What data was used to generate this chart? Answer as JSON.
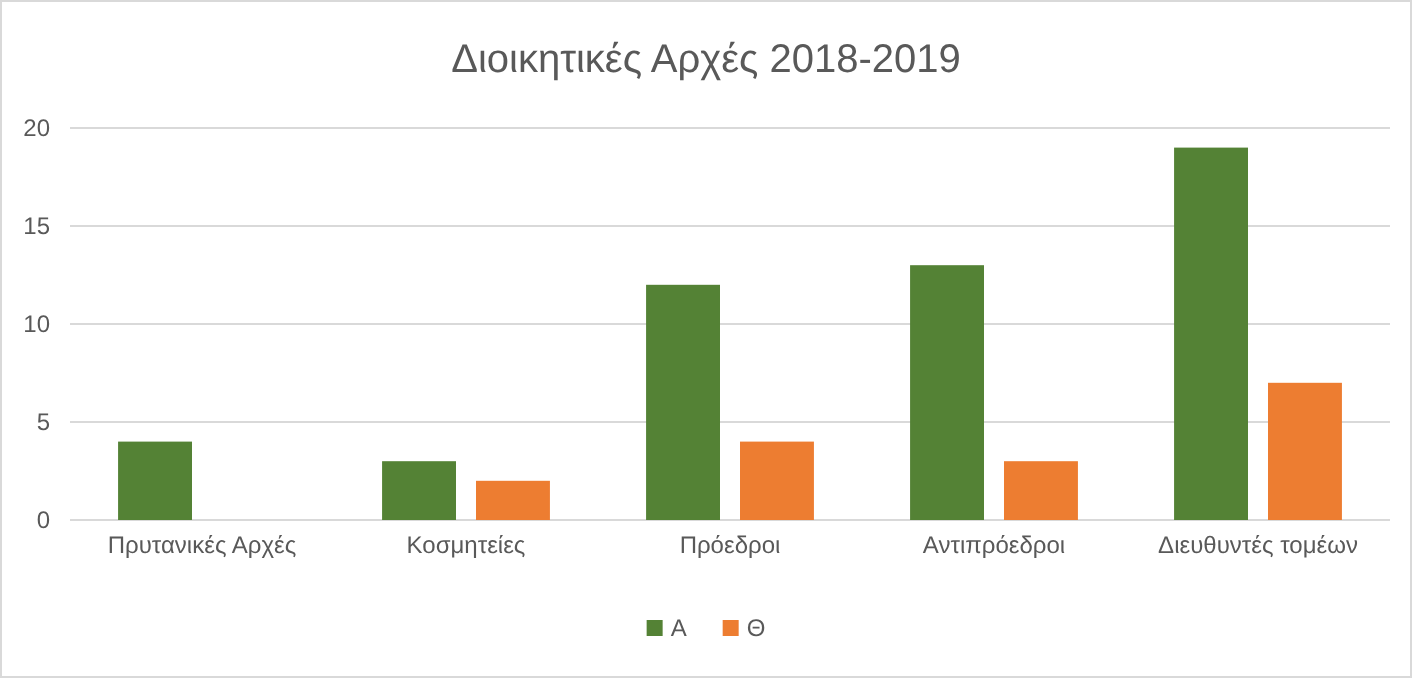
{
  "chart_data": {
    "type": "bar",
    "title": "Διοικητικές Αρχές 2018-2019",
    "categories": [
      "Πρυτανικές Αρχές",
      "Κοσμητείες",
      "Πρόεδροι",
      "Αντιπρόεδροι",
      "Διευθυντές τομέων"
    ],
    "series": [
      {
        "name": "Α",
        "color": "#548235",
        "values": [
          4,
          3,
          12,
          13,
          19
        ]
      },
      {
        "name": "Θ",
        "color": "#ed7d31",
        "values": [
          0,
          2,
          4,
          3,
          7
        ]
      }
    ],
    "ylim": [
      0,
      20
    ],
    "yticks": [
      0,
      5,
      10,
      15,
      20
    ],
    "grid": "y",
    "legend": "bottom"
  }
}
